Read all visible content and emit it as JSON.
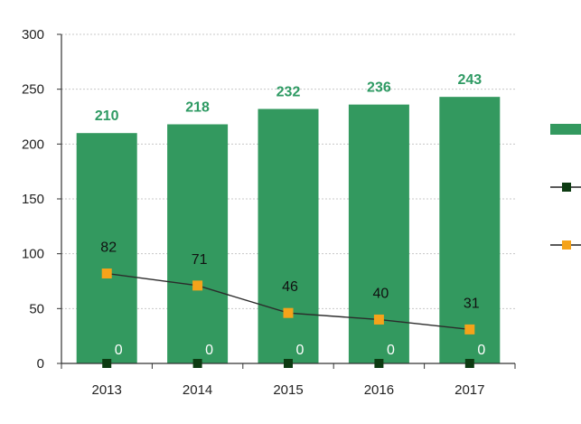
{
  "chart_data": {
    "type": "bar",
    "categories": [
      "2013",
      "2014",
      "2015",
      "2016",
      "2017"
    ],
    "ylim": [
      0,
      300
    ],
    "yticks": [
      0,
      50,
      100,
      150,
      200,
      250,
      300
    ],
    "grid": true,
    "legend_position": "right (entries cut off)",
    "series": [
      {
        "kind": "bar",
        "values": [
          210,
          218,
          232,
          236,
          243
        ],
        "color": "#33995f",
        "label_color": "#2e9a63"
      },
      {
        "kind": "line-markers",
        "values": [
          0,
          0,
          0,
          0,
          0
        ],
        "color": "#0d3b12"
      },
      {
        "kind": "line",
        "values": [
          82,
          71,
          46,
          40,
          31
        ],
        "color": "#f5a31a",
        "line_color": "#2b2b2b"
      }
    ]
  }
}
